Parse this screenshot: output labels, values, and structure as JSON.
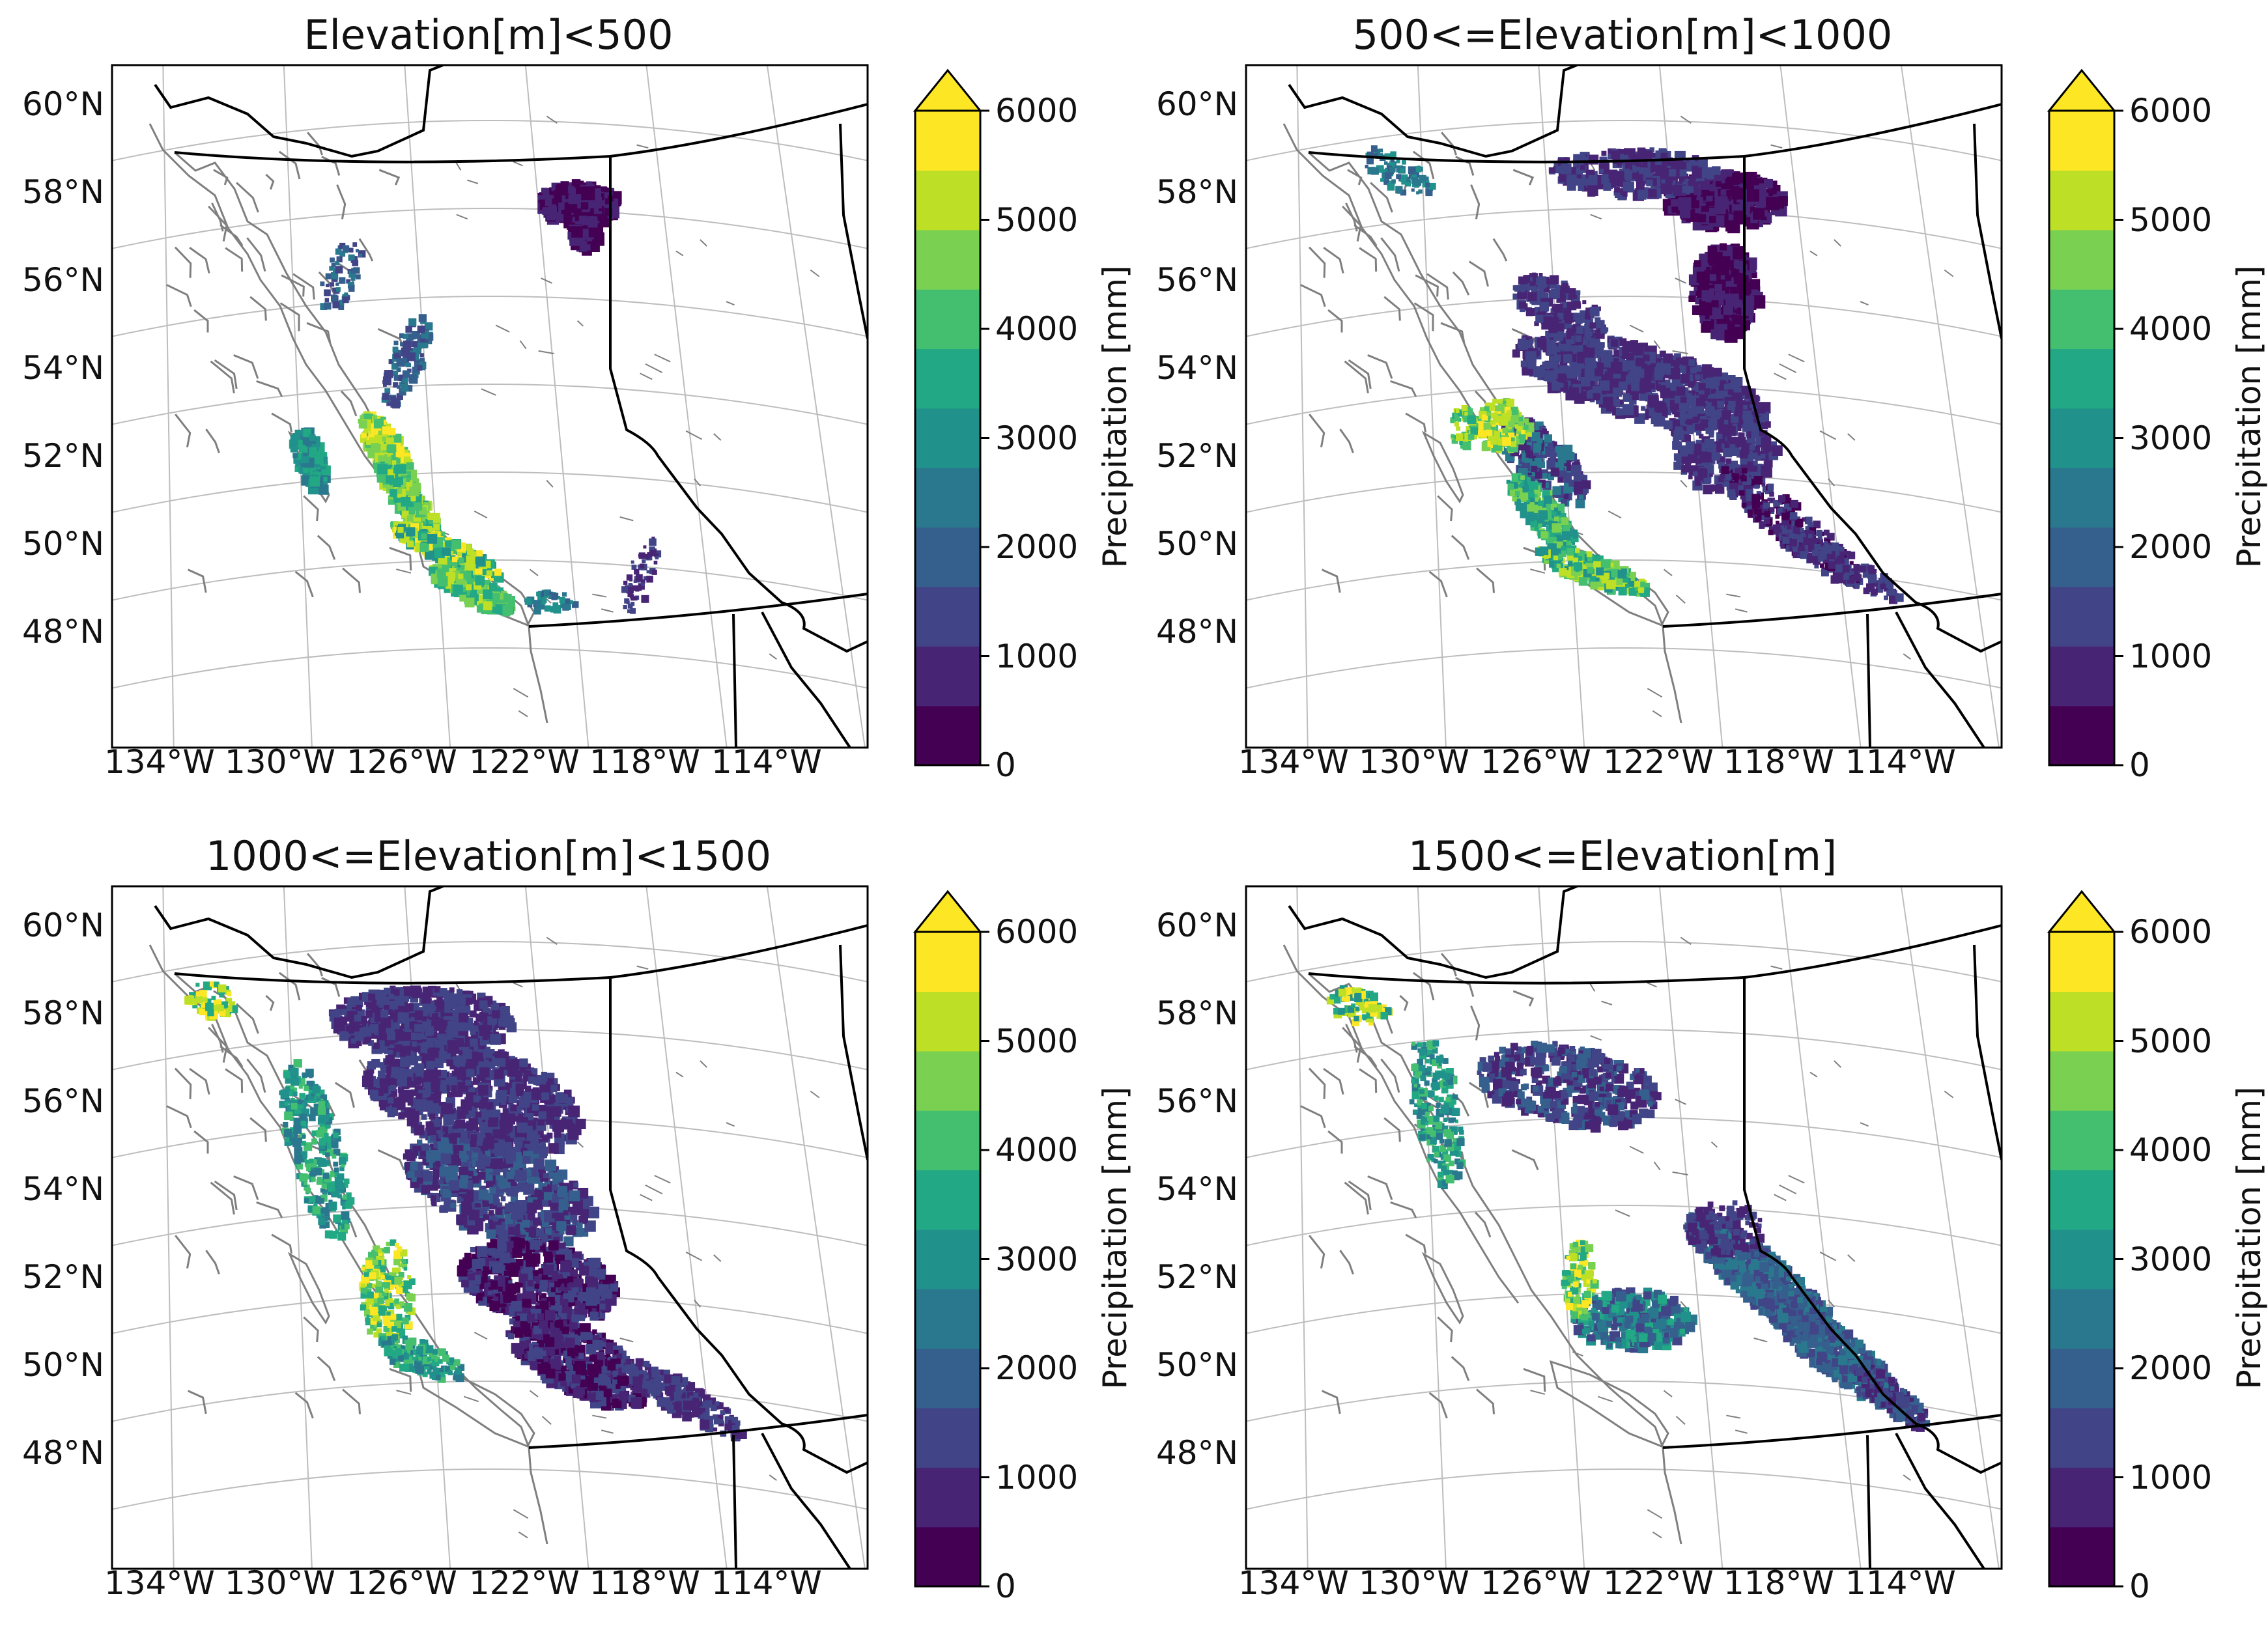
{
  "colors": {
    "viridis": [
      "#440154",
      "#482475",
      "#414487",
      "#355f8d",
      "#2a788e",
      "#21918c",
      "#22a884",
      "#44bf70",
      "#7ad151",
      "#bddf26",
      "#fde725"
    ],
    "coast": "#7f7f7f",
    "border": "#000000",
    "grid": "#bdbdbd"
  },
  "colorbar": {
    "ticks": [
      "6000",
      "5000",
      "4000",
      "3000",
      "2000",
      "1000",
      "0"
    ],
    "label": "Precipitation [mm]",
    "extend": "max"
  },
  "map": {
    "lat_labels": [
      "60°N",
      "58°N",
      "56°N",
      "54°N",
      "52°N",
      "50°N",
      "48°N"
    ],
    "lon_labels": [
      "134°W",
      "130°W",
      "126°W",
      "122°W",
      "118°W",
      "114°W"
    ]
  },
  "panels": [
    {
      "title": "Elevation[m]<500"
    },
    {
      "title": "500<=Elevation[m]<1000"
    },
    {
      "title": "1000<=Elevation[m]<1500"
    },
    {
      "title": "1500<=Elevation[m]"
    }
  ]
}
